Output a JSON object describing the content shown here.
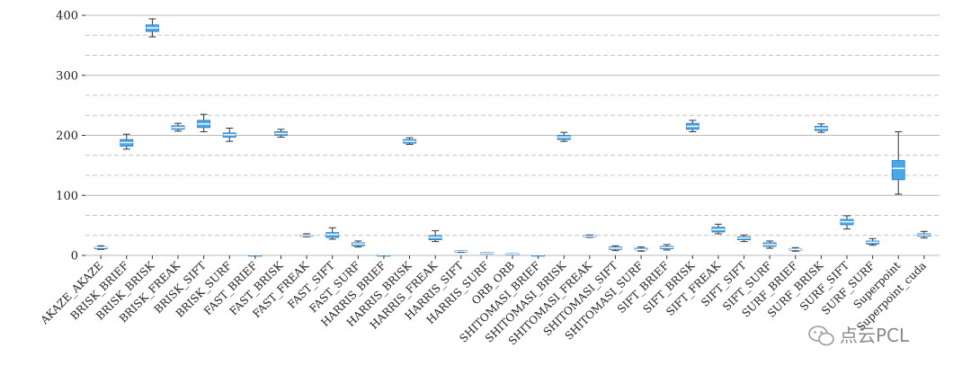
{
  "chart_data": {
    "type": "box",
    "title": "",
    "xlabel": "",
    "ylabel": "",
    "ylim": [
      0,
      400
    ],
    "yticks": [
      0,
      100,
      200,
      300,
      400
    ],
    "grid": true,
    "box_color": "#4aa8e8",
    "box_edge_color": "#1f78c8",
    "median_color": "#ffffff",
    "categories": [
      "AKAZE_AKAZE",
      "BRISK_BRIEF",
      "BRISK_BRISK",
      "BRISK_FREAK",
      "BRISK_SIFT",
      "BRISK_SURF",
      "FAST_BRIEF",
      "FAST_BRISK",
      "FAST_FREAK",
      "FAST_SIFT",
      "FAST_SURF",
      "HARRIS_BRIEF",
      "HARRIS_BRISK",
      "HARRIS_FREAK",
      "HARRIS_SIFT",
      "HARRIS_SURF",
      "ORB_ORB",
      "SHITOMASI_BRIEF",
      "SHITOMASI_BRISK",
      "SHITOMASI_FREAK",
      "SHITOMASI_SIFT",
      "SHITOMASI_SURF",
      "SIFT_BRIEF",
      "SIFT_BRISK",
      "SIFT_FREAK",
      "SIFT_SIFT",
      "SIFT_SURF",
      "SURF_BRIEF",
      "SURF_BRISK",
      "SURF_SIFT",
      "SURF_SURF",
      "Superpoint",
      "Superpoint_cuda"
    ],
    "boxes": [
      {
        "min": 10,
        "q1": 11,
        "median": 13,
        "q3": 14,
        "max": 16
      },
      {
        "min": 177,
        "q1": 182,
        "median": 188,
        "q3": 193,
        "max": 202
      },
      {
        "min": 364,
        "q1": 373,
        "median": 379,
        "q3": 384,
        "max": 394
      },
      {
        "min": 207,
        "q1": 210,
        "median": 213,
        "q3": 216,
        "max": 220
      },
      {
        "min": 206,
        "q1": 213,
        "median": 219,
        "q3": 225,
        "max": 235
      },
      {
        "min": 190,
        "q1": 197,
        "median": 201,
        "q3": 204,
        "max": 212
      },
      {
        "min": 1,
        "q1": 1,
        "median": 1,
        "q3": 1,
        "max": 1
      },
      {
        "min": 197,
        "q1": 200,
        "median": 203,
        "q3": 206,
        "max": 210
      },
      {
        "min": 31,
        "q1": 32,
        "median": 33,
        "q3": 34,
        "max": 36
      },
      {
        "min": 27,
        "q1": 30,
        "median": 35,
        "q3": 38,
        "max": 46
      },
      {
        "min": 14,
        "q1": 16,
        "median": 19,
        "q3": 21,
        "max": 24
      },
      {
        "min": 1,
        "q1": 1,
        "median": 1,
        "q3": 1,
        "max": 1
      },
      {
        "min": 185,
        "q1": 187,
        "median": 190,
        "q3": 193,
        "max": 196
      },
      {
        "min": 23,
        "q1": 26,
        "median": 30,
        "q3": 33,
        "max": 41
      },
      {
        "min": 5,
        "q1": 6,
        "median": 7,
        "q3": 8,
        "max": 8
      },
      {
        "min": 3,
        "q1": 4,
        "median": 4,
        "q3": 5,
        "max": 5
      },
      {
        "min": 2,
        "q1": 2,
        "median": 2,
        "q3": 3,
        "max": 3
      },
      {
        "min": 1,
        "q1": 1,
        "median": 1,
        "q3": 1,
        "max": 1
      },
      {
        "min": 190,
        "q1": 193,
        "median": 197,
        "q3": 200,
        "max": 205
      },
      {
        "min": 30,
        "q1": 31,
        "median": 32,
        "q3": 33,
        "max": 34
      },
      {
        "min": 8,
        "q1": 10,
        "median": 12,
        "q3": 14,
        "max": 16
      },
      {
        "min": 7,
        "q1": 9,
        "median": 10,
        "q3": 12,
        "max": 14
      },
      {
        "min": 9,
        "q1": 11,
        "median": 13,
        "q3": 15,
        "max": 18
      },
      {
        "min": 206,
        "q1": 210,
        "median": 215,
        "q3": 220,
        "max": 225
      },
      {
        "min": 36,
        "q1": 39,
        "median": 43,
        "q3": 47,
        "max": 52
      },
      {
        "min": 23,
        "q1": 26,
        "median": 29,
        "q3": 31,
        "max": 34
      },
      {
        "min": 12,
        "q1": 15,
        "median": 18,
        "q3": 21,
        "max": 24
      },
      {
        "min": 7,
        "q1": 9,
        "median": 10,
        "q3": 11,
        "max": 13
      },
      {
        "min": 205,
        "q1": 208,
        "median": 212,
        "q3": 215,
        "max": 219
      },
      {
        "min": 44,
        "q1": 51,
        "median": 56,
        "q3": 60,
        "max": 66
      },
      {
        "min": 17,
        "q1": 19,
        "median": 22,
        "q3": 24,
        "max": 28
      },
      {
        "min": 102,
        "q1": 126,
        "median": 145,
        "q3": 158,
        "max": 206
      },
      {
        "min": 29,
        "q1": 32,
        "median": 34,
        "q3": 36,
        "max": 40
      }
    ]
  },
  "watermark": "点云PCL"
}
